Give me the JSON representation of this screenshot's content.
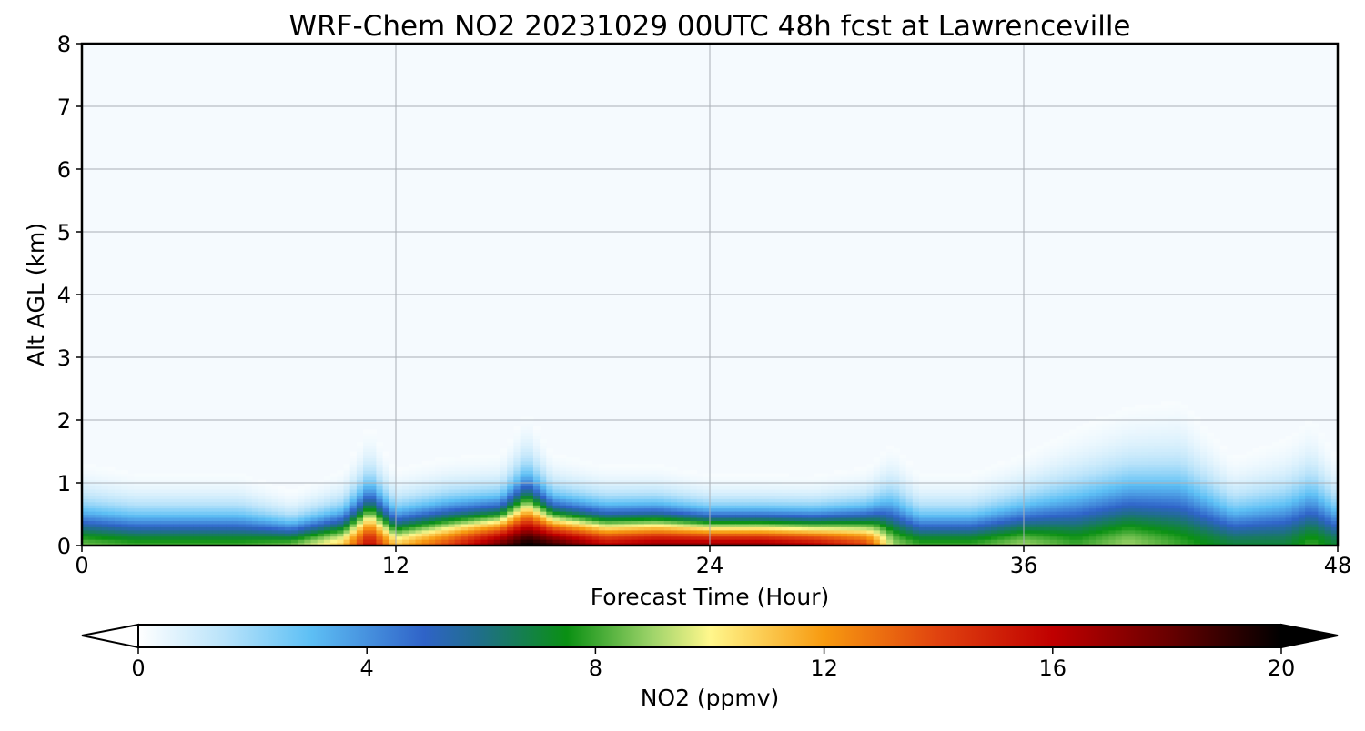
{
  "chart_data": {
    "type": "heatmap",
    "title": "WRF-Chem NO2  20231029 00UTC 48h fcst at Lawrenceville",
    "xlabel": "Forecast Time (Hour)",
    "ylabel": "Alt AGL (km)",
    "xlim": [
      0,
      48
    ],
    "ylim": [
      0,
      8
    ],
    "x_ticks": [
      "0",
      "12",
      "24",
      "36",
      "48"
    ],
    "y_ticks": [
      "0",
      "1",
      "2",
      "3",
      "4",
      "5",
      "6",
      "7",
      "8"
    ],
    "grid": true,
    "colorbar": {
      "label": "NO2  (ppmv)",
      "range": [
        0,
        20
      ],
      "ticks": [
        "0",
        "4",
        "8",
        "12",
        "16",
        "20"
      ],
      "extend": "both",
      "colormap_stops": [
        {
          "v": 0,
          "c": "#ffffff"
        },
        {
          "v": 1.5,
          "c": "#b9e3fa"
        },
        {
          "v": 3,
          "c": "#5ec0f5"
        },
        {
          "v": 5,
          "c": "#2f63c8"
        },
        {
          "v": 6,
          "c": "#1f6f88"
        },
        {
          "v": 7.5,
          "c": "#0a9013"
        },
        {
          "v": 9,
          "c": "#9fd46a"
        },
        {
          "v": 10,
          "c": "#fff78c"
        },
        {
          "v": 12,
          "c": "#f79a10"
        },
        {
          "v": 14,
          "c": "#e0420f"
        },
        {
          "v": 16,
          "c": "#c00000"
        },
        {
          "v": 18,
          "c": "#6a0000"
        },
        {
          "v": 20,
          "c": "#000000"
        }
      ]
    },
    "field": {
      "x_hours": [
        0,
        2,
        4,
        6,
        8,
        10,
        11,
        12,
        14,
        16,
        17,
        18,
        20,
        22,
        24,
        26,
        28,
        30,
        31,
        32,
        34,
        36,
        38,
        40,
        42,
        44,
        46,
        47,
        48
      ],
      "surface_no2_ppmv": [
        8.5,
        8,
        8,
        8,
        8.5,
        11,
        16,
        11,
        14,
        18,
        20,
        19,
        16,
        17,
        17,
        17,
        16,
        14,
        9,
        8,
        8,
        9,
        8,
        9,
        8,
        7,
        7,
        8,
        7
      ],
      "column_depth_km": [
        0.9,
        0.8,
        0.8,
        0.8,
        0.6,
        0.8,
        1.2,
        0.8,
        0.9,
        0.9,
        1.3,
        0.9,
        0.8,
        0.8,
        0.7,
        0.7,
        0.7,
        0.8,
        1.1,
        0.8,
        0.8,
        1.0,
        1.3,
        1.5,
        1.6,
        1.0,
        1.2,
        1.4,
        1.0
      ]
    }
  }
}
